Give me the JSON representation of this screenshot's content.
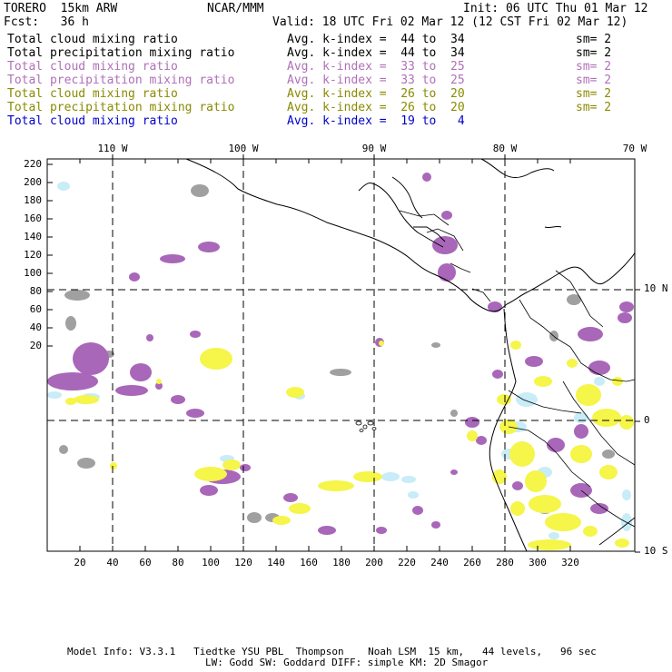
{
  "header": {
    "model": "TORERO  15km ARW",
    "org": "NCAR/MMM",
    "init": "Init: 06 UTC Thu 01 Mar 12",
    "fcst": "Fcst:   36 h",
    "valid": "Valid: 18 UTC Fri 02 Mar 12 (12 CST Fri 02 Mar 12)"
  },
  "legend": [
    {
      "field": "Total cloud mixing ratio",
      "kindex": "Avg. k-index =  44 to  34",
      "sm": "sm= 2",
      "color": "#000000"
    },
    {
      "field": "Total precipitation mixing ratio",
      "kindex": "Avg. k-index =  44 to  34",
      "sm": "sm= 2",
      "color": "#000000"
    },
    {
      "field": "Total cloud mixing ratio",
      "kindex": "Avg. k-index =  33 to  25",
      "sm": "sm= 2",
      "color": "#b070b8"
    },
    {
      "field": "Total precipitation mixing ratio",
      "kindex": "Avg. k-index =  33 to  25",
      "sm": "sm= 2",
      "color": "#b070b8"
    },
    {
      "field": "Total cloud mixing ratio",
      "kindex": "Avg. k-index =  26 to  20",
      "sm": "sm= 2",
      "color": "#8a8a00"
    },
    {
      "field": "Total precipitation mixing ratio",
      "kindex": "Avg. k-index =  26 to  20",
      "sm": "sm= 2",
      "color": "#8a8a00"
    },
    {
      "field": "Total cloud mixing ratio",
      "kindex": "Avg. k-index =  19 to   4",
      "sm": "",
      "color": "#0000cc"
    }
  ],
  "map": {
    "lon_labels": [
      "110 W",
      "100 W",
      "90 W",
      "80 W",
      "70 W"
    ],
    "lat_labels": [
      "10 N",
      "0",
      "10 S"
    ],
    "y_ticks": [
      "220",
      "200",
      "180",
      "160",
      "140",
      "120",
      "100",
      "80",
      "60",
      "40",
      "20"
    ],
    "x_ticks": [
      "20",
      "40",
      "60",
      "80",
      "100",
      "120",
      "140",
      "160",
      "180",
      "200",
      "220",
      "240",
      "260",
      "280",
      "300",
      "320"
    ],
    "colors": {
      "gray": "#a0a0a0",
      "purple": "#a867b8",
      "yellow": "#f5f54a",
      "light_blue": "#c8ecf8"
    }
  },
  "footer": {
    "line1": "Model Info: V3.3.1   Tiedtke YSU PBL  Thompson    Noah LSM  15 km,   44 levels,   96 sec",
    "line2": "LW: Godd SW: Goddard DIFF: simple KM: 2D Smagor"
  }
}
